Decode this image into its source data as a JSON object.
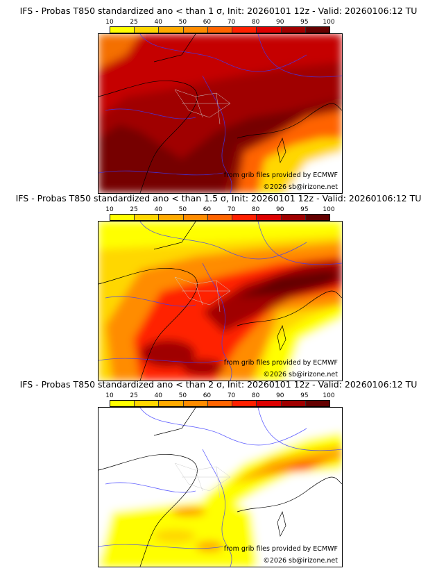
{
  "colorbar": {
    "ticks": [
      "10",
      "25",
      "40",
      "50",
      "60",
      "70",
      "80",
      "90",
      "95",
      "100"
    ],
    "colors": [
      "#ffff00",
      "#ffd700",
      "#ffaa00",
      "#ff8c00",
      "#ff6400",
      "#ff2000",
      "#dd0000",
      "#a00000",
      "#640000"
    ]
  },
  "panels": [
    {
      "title": "IFS - Probas T850  standardized ano < than 1 σ, Init: 20260101 12z - Valid: 20260106:12 TU",
      "level": 1
    },
    {
      "title": "IFS - Probas T850  standardized ano < than 1.5 σ, Init: 20260101 12z - Valid: 20260106:12 TU",
      "level": 2
    },
    {
      "title": "IFS - Probas T850  standardized ano < than 2 σ, Init: 20260101 12z - Valid: 20260106:12 TU",
      "level": 3
    }
  ],
  "credits": {
    "source": "from grib files provided by ECMWF",
    "copyright": "©2026 sb@irizone.net"
  }
}
